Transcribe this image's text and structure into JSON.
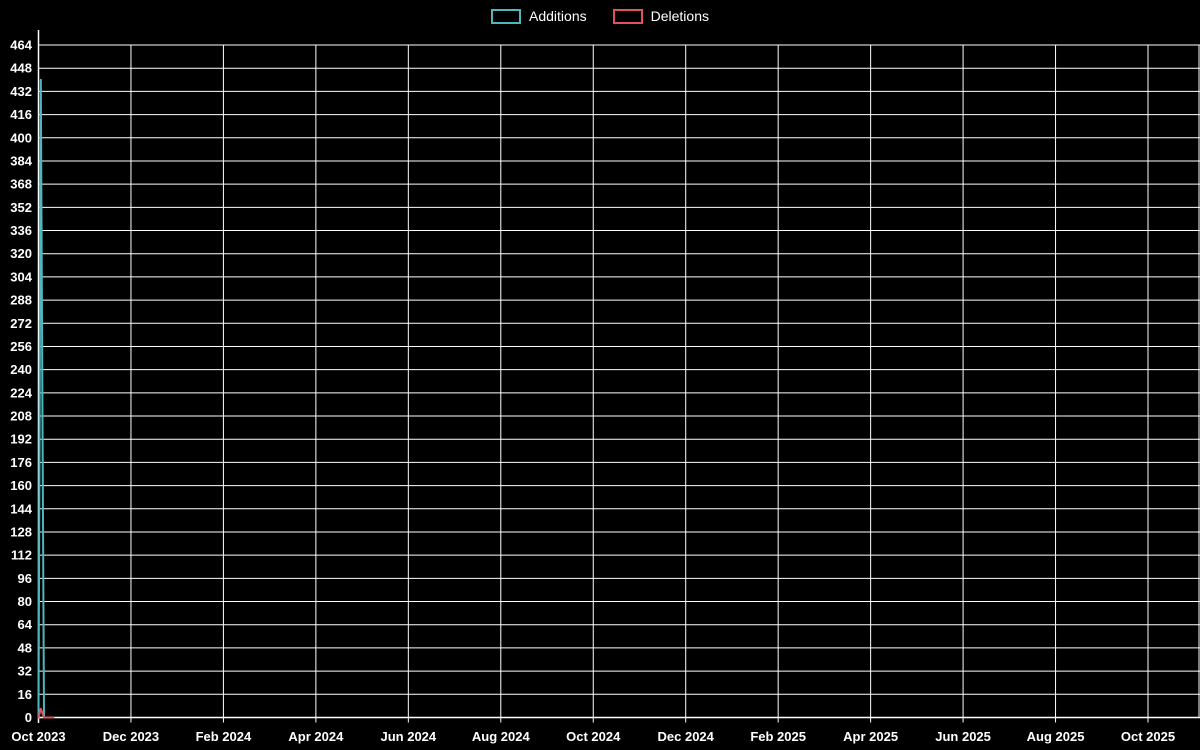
{
  "legend": {
    "position": "top-center",
    "items": [
      {
        "label": "Additions",
        "color": "#4fb6bd"
      },
      {
        "label": "Deletions",
        "color": "#e0525f"
      }
    ]
  },
  "chart_data": {
    "type": "line",
    "title": "",
    "xlabel": "",
    "ylabel": "",
    "background_color": "#000000",
    "grid": true,
    "grid_color": "#ffffff",
    "axis_color": "#ffffff",
    "text_color": "#ffffff",
    "legend_position": "top-center",
    "x_unit": "months since Oct 2023",
    "x_ticks": [
      "Oct 2023",
      "Dec 2023",
      "Feb 2024",
      "Apr 2024",
      "Jun 2024",
      "Aug 2024",
      "Oct 2024",
      "Dec 2024",
      "Feb 2025",
      "Apr 2025",
      "Jun 2025",
      "Aug 2025",
      "Oct 2025"
    ],
    "x_tick_interval_months": 2,
    "y_min": 0,
    "y_max": 464,
    "y_tick_step": 16,
    "series": [
      {
        "name": "Additions",
        "color": "#4fb6bd",
        "points": [
          {
            "x": 0.0,
            "y": 0
          },
          {
            "x": 0.05,
            "y": 440
          },
          {
            "x": 0.12,
            "y": 0
          },
          {
            "x": 0.32,
            "y": 0
          }
        ]
      },
      {
        "name": "Deletions",
        "color": "#e0525f",
        "points": [
          {
            "x": 0.0,
            "y": 0
          },
          {
            "x": 0.05,
            "y": 6
          },
          {
            "x": 0.12,
            "y": 0
          },
          {
            "x": 0.32,
            "y": 0
          }
        ]
      }
    ]
  }
}
